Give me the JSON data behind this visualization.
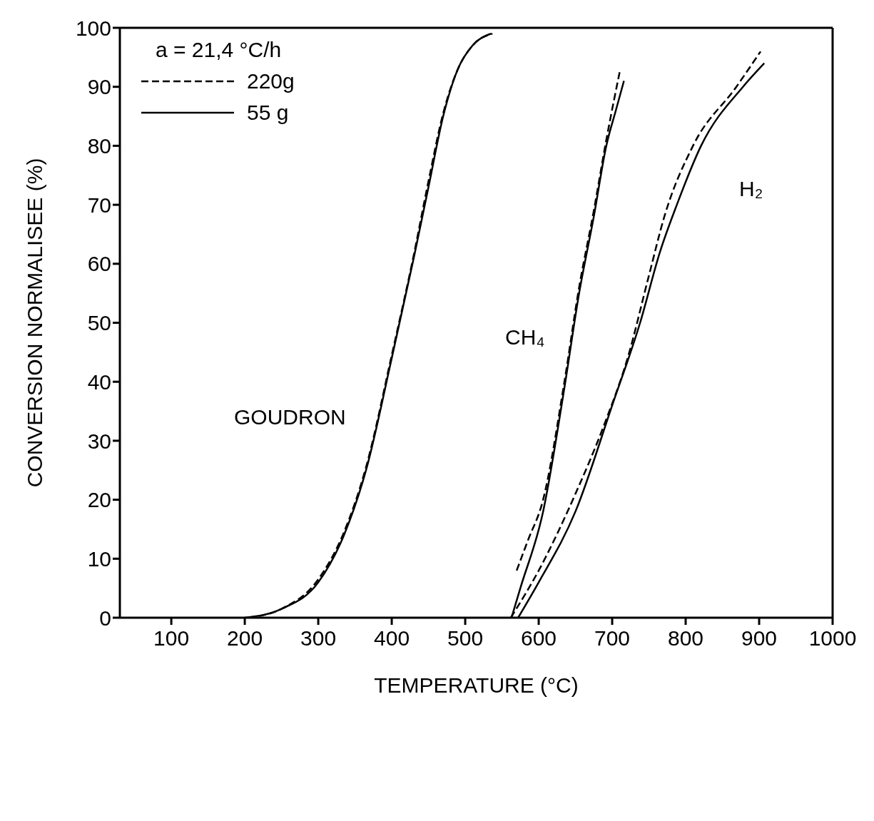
{
  "chart_data": {
    "type": "line",
    "xlabel": "TEMPERATURE (°C)",
    "ylabel": "CONVERSION NORMALISEE (%)",
    "legend_title": "a = 21,4 °C/h",
    "xlim": [
      30,
      1000
    ],
    "xticks": [
      100,
      200,
      300,
      400,
      500,
      600,
      700,
      800,
      900,
      1000
    ],
    "ylim": [
      0,
      100
    ],
    "yticks": [
      0,
      10,
      20,
      30,
      40,
      50,
      60,
      70,
      80,
      90,
      100
    ],
    "grid": false,
    "legend": "top left",
    "marker": "none",
    "series": [
      {
        "name": "220g",
        "color": "#000000",
        "line_style": "dashed",
        "x": [
          205,
          250,
          300,
          335,
          365,
          400,
          430,
          450,
          470,
          490,
          510,
          537
        ],
        "values": [
          0,
          1.5,
          6.5,
          14.5,
          25.5,
          44.5,
          61.5,
          74,
          85.5,
          93,
          97,
          99
        ]
      },
      {
        "name": "55 g",
        "color": "#000000",
        "line_style": "solid",
        "x": [
          200,
          250,
          300,
          335,
          365,
          400,
          430,
          450,
          470,
          490,
          510,
          535
        ],
        "values": [
          0,
          1.5,
          6,
          14,
          25,
          44,
          61,
          73,
          85,
          93,
          97,
          99
        ]
      },
      {
        "color": "#000000",
        "line_style": "dashed",
        "x": [
          570,
          585,
          606,
          635,
          655,
          675,
          692,
          711
        ],
        "values": [
          8,
          13,
          20,
          40,
          56,
          69,
          81,
          93
        ]
      },
      {
        "color": "#000000",
        "line_style": "solid",
        "x": [
          563,
          575,
          606,
          635,
          655,
          675,
          692,
          705,
          716
        ],
        "values": [
          0,
          5,
          18,
          39,
          55,
          68,
          80,
          86,
          91
        ]
      },
      {
        "color": "#000000",
        "line_style": "dashed",
        "x": [
          562,
          600,
          650,
          690,
          721,
          750,
          771,
          810,
          869,
          902
        ],
        "values": [
          0,
          8,
          21,
          33,
          44,
          58,
          68,
          80,
          90,
          96
        ]
      },
      {
        "color": "#000000",
        "line_style": "solid",
        "x": [
          572,
          600,
          650,
          700,
          738,
          765,
          788,
          821,
          878,
          907
        ],
        "values": [
          0,
          6,
          18,
          36,
          50,
          62,
          70,
          80,
          90,
          94
        ]
      }
    ],
    "annotations": [
      "GOUDRON",
      "CH₄",
      "H₂"
    ]
  }
}
